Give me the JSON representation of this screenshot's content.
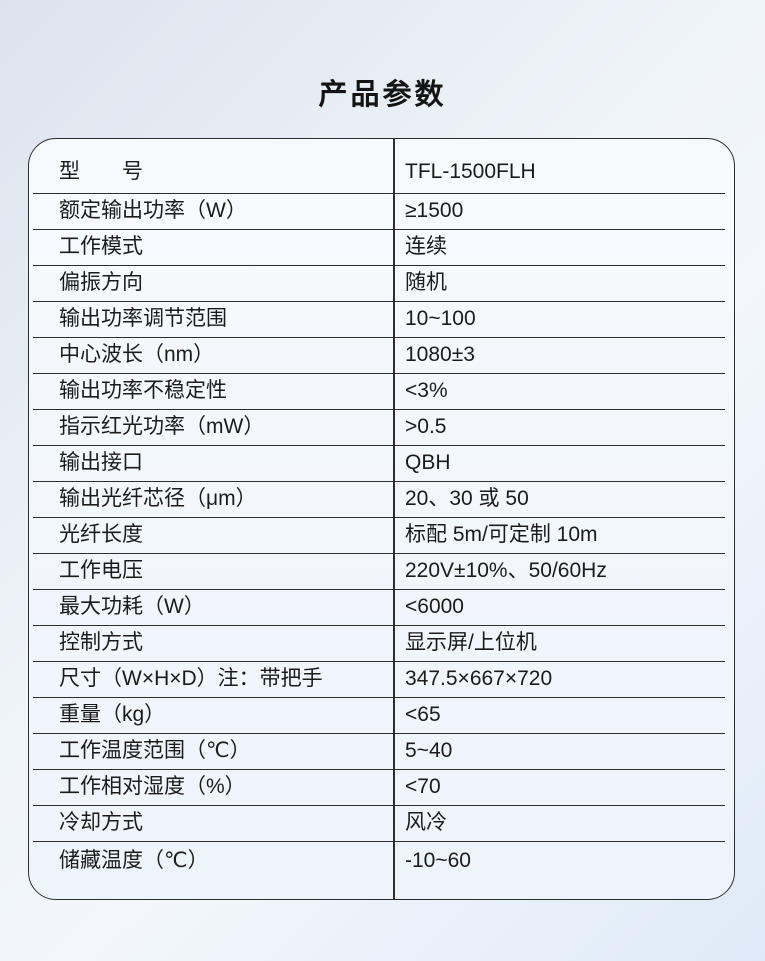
{
  "page": {
    "title": "产品参数"
  },
  "colors": {
    "background_top": "#dce3ed",
    "background_bottom": "#dfeaf8",
    "table_background": "#f2f7fc",
    "border": "#2e2e2e",
    "text": "#1b1b1b"
  },
  "table": {
    "rows": [
      {
        "label": "型　　号",
        "value": "TFL-1500FLH"
      },
      {
        "label": "额定输出功率（W）",
        "value": "≥1500"
      },
      {
        "label": "工作模式",
        "value": "连续"
      },
      {
        "label": "偏振方向",
        "value": "随机"
      },
      {
        "label": "输出功率调节范围",
        "value": "10~100"
      },
      {
        "label": "中心波长（nm）",
        "value": "1080±3"
      },
      {
        "label": "输出功率不稳定性",
        "value": "<3%"
      },
      {
        "label": "指示红光功率（mW）",
        "value": ">0.5"
      },
      {
        "label": "输出接口",
        "value": "QBH"
      },
      {
        "label": "输出光纤芯径（μm）",
        "value": "20、30 或 50"
      },
      {
        "label": "光纤长度",
        "value": "标配 5m/可定制 10m"
      },
      {
        "label": "工作电压",
        "value": "220V±10%、50/60Hz"
      },
      {
        "label": "最大功耗（W）",
        "value": "<6000"
      },
      {
        "label": "控制方式",
        "value": "显示屏/上位机"
      },
      {
        "label": "尺寸（W×H×D）注：带把手",
        "value": "347.5×667×720"
      },
      {
        "label": "重量（kg）",
        "value": "<65"
      },
      {
        "label": "工作温度范围（℃）",
        "value": "5~40"
      },
      {
        "label": "工作相对湿度（%）",
        "value": "<70"
      },
      {
        "label": "冷却方式",
        "value": "风冷"
      },
      {
        "label": "储藏温度（℃）",
        "value": "-10~60"
      }
    ]
  }
}
